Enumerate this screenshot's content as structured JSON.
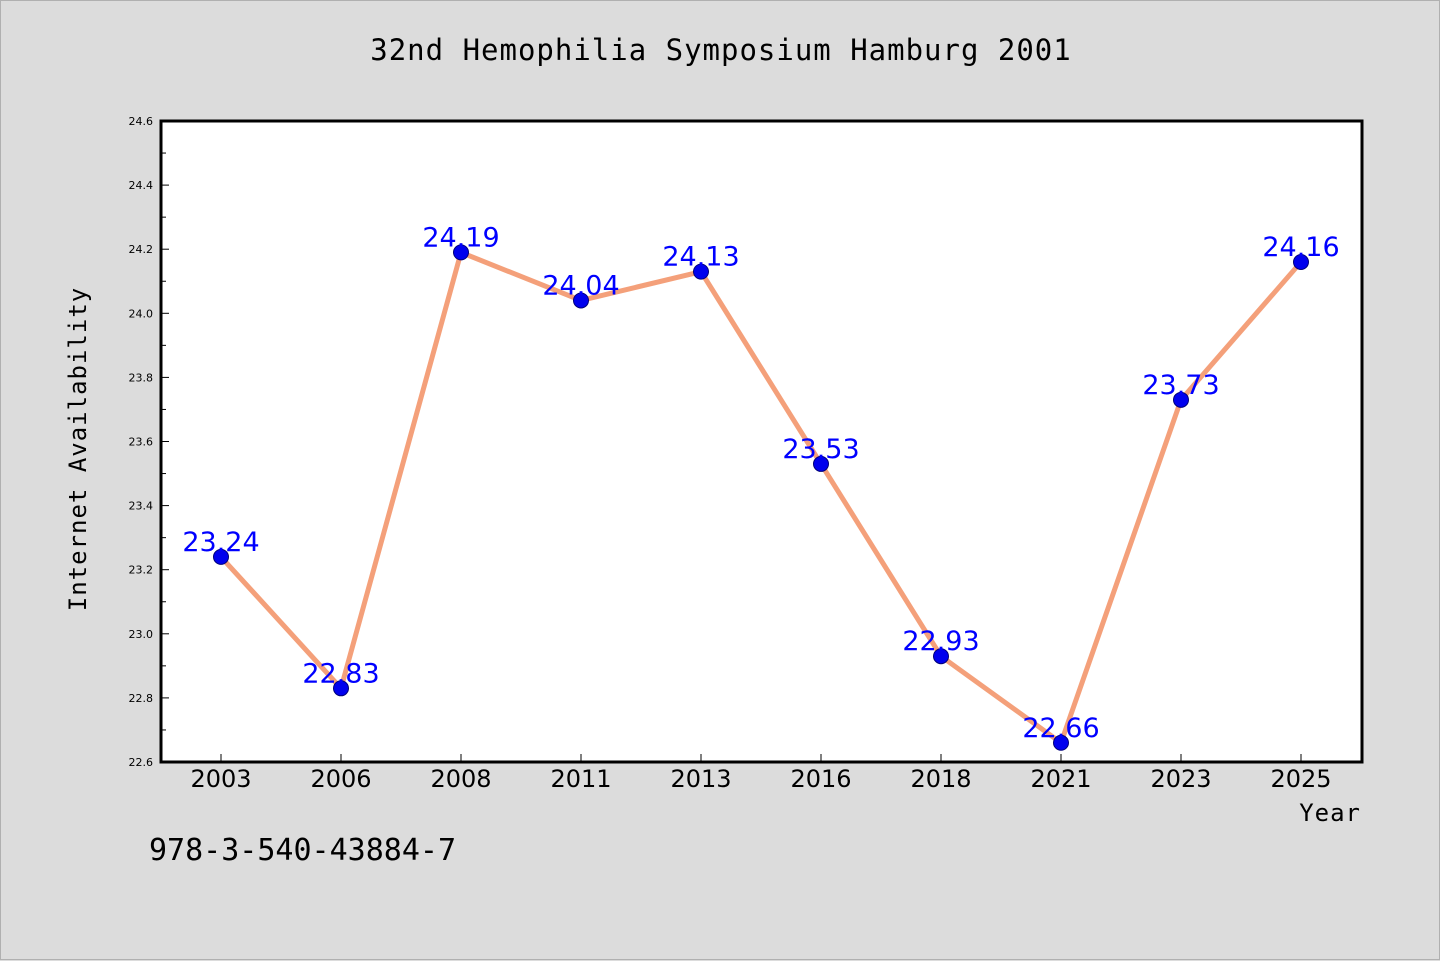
{
  "title": "32nd Hemophilia Symposium Hamburg 2001",
  "footnote": "978-3-540-43884-7",
  "chart_data": {
    "type": "line",
    "title": "32nd Hemophilia Symposium Hamburg 2001",
    "xlabel": "Year",
    "ylabel": "Internet Availability",
    "categories": [
      "2003",
      "2006",
      "2008",
      "2011",
      "2013",
      "2016",
      "2018",
      "2021",
      "2023",
      "2025"
    ],
    "series": [
      {
        "values": [
          23.24,
          22.83,
          24.19,
          24.04,
          24.13,
          23.53,
          22.93,
          22.66,
          23.73,
          24.16
        ],
        "line_color": "#f4a07a",
        "marker_color": "#0000ee"
      }
    ],
    "data_labels": [
      "23.24",
      "22.83",
      "24.19",
      "24.04",
      "24.13",
      "23.53",
      "22.93",
      "22.66",
      "23.73",
      "24.16"
    ],
    "ylim": [
      22.6,
      24.6
    ],
    "yticks": [
      "22.6",
      "22.8",
      "23.0",
      "23.2",
      "23.4",
      "23.6",
      "23.8",
      "24.0",
      "24.2",
      "24.4",
      "24.6"
    ],
    "grid": false,
    "legend": "none",
    "colors": {
      "background": "#dcdcdc",
      "plot_background": "#ffffff",
      "data_label": "#0000ff"
    }
  }
}
